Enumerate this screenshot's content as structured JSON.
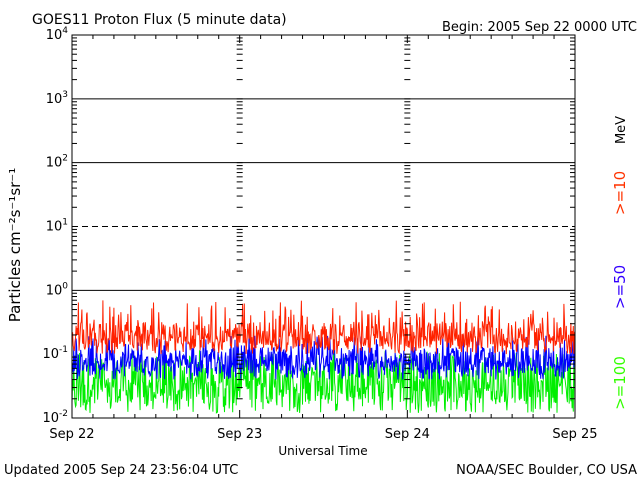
{
  "header": {
    "title": "GOES11 Proton Flux (5 minute data)",
    "begin": "Begin: 2005 Sep 22 0000 UTC"
  },
  "footer": {
    "updated": "Updated 2005 Sep 24 23:56:04 UTC",
    "source": "NOAA/SEC Boulder, CO USA"
  },
  "chart_data": {
    "type": "line",
    "title": "GOES11 Proton Flux (5 minute data)",
    "xlabel": "Universal Time",
    "ylabel": "Particles cm⁻²s⁻¹sr⁻¹",
    "y_scale": "log",
    "ylim_exponent": [
      -2,
      4
    ],
    "y_ticks": [
      {
        "base": "10",
        "exp": "-2"
      },
      {
        "base": "10",
        "exp": "-1"
      },
      {
        "base": "10",
        "exp": "0"
      },
      {
        "base": "10",
        "exp": "1"
      },
      {
        "base": "10",
        "exp": "2"
      },
      {
        "base": "10",
        "exp": "3"
      },
      {
        "base": "10",
        "exp": "4"
      }
    ],
    "x_ticks": [
      "Sep 22",
      "Sep 23",
      "Sep 24",
      "Sep 25"
    ],
    "xlim_days": [
      0,
      3
    ],
    "right_axis": {
      "unit": "MeV",
      "labels": [
        {
          "text": ">=10",
          "color": "#ff3300"
        },
        {
          "text": ">=50",
          "color": "#3300ff"
        },
        {
          "text": ">=100",
          "color": "#33ff00"
        }
      ]
    },
    "threshold_lines": [
      {
        "value": 10,
        "style": "dashed"
      },
      {
        "value": 1,
        "style": "solid"
      }
    ],
    "series": [
      {
        "name": ">=10",
        "color": "#ff2200",
        "typical": 0.2,
        "min": 0.1,
        "max": 0.7
      },
      {
        "name": ">=50",
        "color": "#0000ff",
        "typical": 0.08,
        "min": 0.04,
        "max": 0.2
      },
      {
        "name": ">=100",
        "color": "#00ee00",
        "typical": 0.04,
        "min": 0.012,
        "max": 0.12
      }
    ]
  }
}
